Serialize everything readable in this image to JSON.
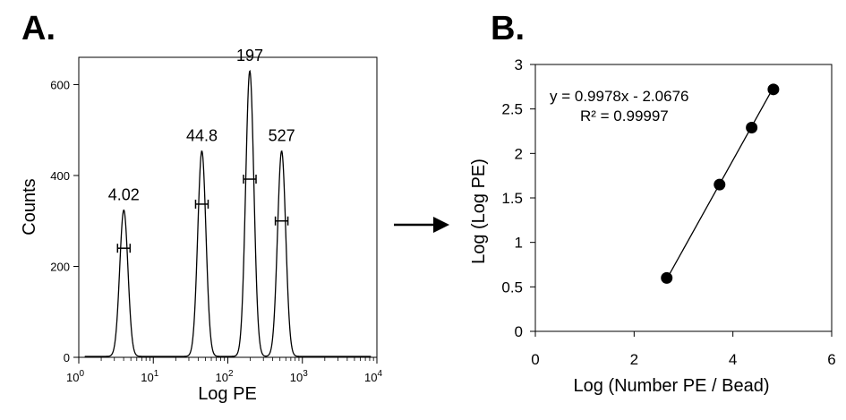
{
  "chart_data": [
    {
      "type": "line",
      "panel_label": "A.",
      "xlabel": "Log PE",
      "ylabel": "Counts",
      "x_scale": "log",
      "xlim": [
        1,
        10000
      ],
      "ylim": [
        0,
        660
      ],
      "x_ticks": [
        {
          "value": 1,
          "base": "10",
          "exp": "0"
        },
        {
          "value": 10,
          "base": "10",
          "exp": "1"
        },
        {
          "value": 100,
          "base": "10",
          "exp": "2"
        },
        {
          "value": 1000,
          "base": "10",
          "exp": "3"
        },
        {
          "value": 10000,
          "base": "10",
          "exp": "4"
        }
      ],
      "y_ticks": [
        {
          "value": 0,
          "label": "0"
        },
        {
          "value": 200,
          "label": "200"
        },
        {
          "value": 400,
          "label": "400"
        },
        {
          "value": 600,
          "label": "600"
        }
      ],
      "baseline_counts": 2,
      "peaks": [
        {
          "label": "4.02",
          "center": 4.02,
          "height": 322,
          "marker_count": 240
        },
        {
          "label": "44.8",
          "center": 44.8,
          "height": 452,
          "marker_count": 337
        },
        {
          "label": "197",
          "center": 197,
          "height": 628,
          "marker_count": 392
        },
        {
          "label": "527",
          "center": 527,
          "height": 452,
          "marker_count": 300
        }
      ],
      "grid": false,
      "legend": "none"
    },
    {
      "type": "scatter",
      "panel_label": "B.",
      "xlabel": "Log (Number PE / Bead)",
      "ylabel": "Log (Log PE)",
      "xlim": [
        0,
        6
      ],
      "ylim": [
        0,
        3
      ],
      "x_ticks": [
        {
          "value": 0,
          "label": "0"
        },
        {
          "value": 2,
          "label": "2"
        },
        {
          "value": 4,
          "label": "4"
        },
        {
          "value": 6,
          "label": "6"
        }
      ],
      "y_ticks": [
        {
          "value": 0,
          "label": "0"
        },
        {
          "value": 0.5,
          "label": "0.5"
        },
        {
          "value": 1,
          "label": "1"
        },
        {
          "value": 1.5,
          "label": "1.5"
        },
        {
          "value": 2,
          "label": "2"
        },
        {
          "value": 2.5,
          "label": "2.5"
        },
        {
          "value": 3,
          "label": "3"
        }
      ],
      "points": [
        {
          "x": 2.66,
          "y": 0.6
        },
        {
          "x": 3.73,
          "y": 1.65
        },
        {
          "x": 4.38,
          "y": 2.29
        },
        {
          "x": 4.82,
          "y": 2.72
        }
      ],
      "trendline": {
        "slope": 0.9978,
        "intercept": -2.0676
      },
      "equation": "y = 0.9978x - 2.0676",
      "r_squared": "R² = 0.99997",
      "grid": false,
      "legend": "none"
    }
  ]
}
